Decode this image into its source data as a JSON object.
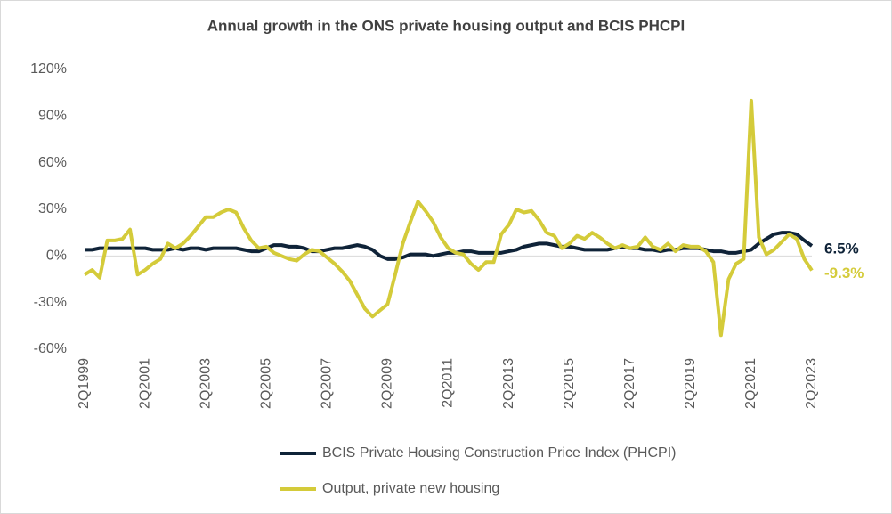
{
  "chart_data": {
    "type": "line",
    "title": "Annual growth in the ONS private housing output and BCIS PHCPI",
    "categories": [
      "2Q1999",
      null,
      null,
      null,
      null,
      null,
      null,
      null,
      "2Q2001",
      null,
      null,
      null,
      null,
      null,
      null,
      null,
      "2Q2003",
      null,
      null,
      null,
      null,
      null,
      null,
      null,
      "2Q2005",
      null,
      null,
      null,
      null,
      null,
      null,
      null,
      "2Q2007",
      null,
      null,
      null,
      null,
      null,
      null,
      null,
      "2Q2009",
      null,
      null,
      null,
      null,
      null,
      null,
      null,
      "2Q2011",
      null,
      null,
      null,
      null,
      null,
      null,
      null,
      "2Q2013",
      null,
      null,
      null,
      null,
      null,
      null,
      null,
      "2Q2015",
      null,
      null,
      null,
      null,
      null,
      null,
      null,
      "2Q2017",
      null,
      null,
      null,
      null,
      null,
      null,
      null,
      "2Q2019",
      null,
      null,
      null,
      null,
      null,
      null,
      null,
      "2Q2021",
      null,
      null,
      null,
      null,
      null,
      null,
      null,
      "2Q2023"
    ],
    "series": [
      {
        "name": "BCIS Private Housing Construction Price Index (PHCPI)",
        "color": "#0f2338",
        "values": [
          4,
          4,
          5,
          5,
          5,
          5,
          5,
          5,
          5,
          4,
          4,
          4,
          5,
          4,
          5,
          5,
          4,
          5,
          5,
          5,
          5,
          4,
          3,
          3,
          5,
          7,
          7,
          6,
          6,
          5,
          3,
          3,
          4,
          5,
          5,
          6,
          7,
          6,
          4,
          0,
          -2,
          -2,
          -1,
          1,
          1,
          1,
          0,
          1,
          2,
          2,
          3,
          3,
          2,
          2,
          2,
          2,
          3,
          4,
          6,
          7,
          8,
          8,
          7,
          6,
          6,
          5,
          4,
          4,
          4,
          4,
          5,
          6,
          5,
          5,
          4,
          4,
          3,
          4,
          4,
          5,
          5,
          5,
          4,
          3,
          3,
          2,
          2,
          3,
          4,
          8,
          11,
          14,
          15,
          15,
          14,
          10,
          6.5
        ],
        "value_labels": [
          null,
          null,
          null,
          null,
          null,
          null,
          null,
          null,
          null,
          null,
          null,
          null,
          null,
          null,
          null,
          null,
          null,
          null,
          null,
          null,
          null,
          null,
          null,
          null,
          null,
          null,
          null,
          null,
          null,
          null,
          null,
          null,
          null,
          null,
          null,
          null,
          null,
          null,
          null,
          null,
          null,
          null,
          null,
          null,
          null,
          null,
          null,
          null,
          null,
          null,
          null,
          null,
          null,
          null,
          null,
          null,
          null,
          null,
          null,
          null,
          null,
          null,
          null,
          null,
          null,
          null,
          null,
          null,
          null,
          null,
          null,
          null,
          null,
          null,
          null,
          null,
          null,
          null,
          null,
          null,
          null,
          null,
          null,
          null,
          null,
          null,
          null,
          null,
          null,
          null,
          null,
          null,
          null,
          null,
          null,
          null,
          "6.5%"
        ]
      },
      {
        "name": "Output, private new housing",
        "color": "#d4cb3a",
        "values": [
          -12,
          -9,
          -14,
          10,
          10,
          11,
          17,
          -12,
          -9,
          -5,
          -2,
          8,
          5,
          8,
          13,
          19,
          25,
          25,
          28,
          30,
          28,
          18,
          10,
          5,
          6,
          2,
          0,
          -2,
          -3,
          1,
          4,
          3,
          -1,
          -5,
          -10,
          -16,
          -25,
          -34,
          -39,
          -35,
          -31,
          -12,
          8,
          22,
          35,
          29,
          22,
          12,
          5,
          2,
          1,
          -5,
          -9,
          -4,
          -4,
          14,
          20,
          30,
          28,
          29,
          23,
          15,
          13,
          5,
          8,
          13,
          11,
          15,
          12,
          8,
          5,
          7,
          5,
          6,
          12,
          6,
          4,
          8,
          3,
          7,
          6,
          6,
          3,
          -4,
          -51,
          -15,
          -5,
          -2,
          100,
          12,
          1,
          4,
          9,
          14,
          11,
          -2,
          -9.3
        ],
        "value_labels": [
          null,
          null,
          null,
          null,
          null,
          null,
          null,
          null,
          null,
          null,
          null,
          null,
          null,
          null,
          null,
          null,
          null,
          null,
          null,
          null,
          null,
          null,
          null,
          null,
          null,
          null,
          null,
          null,
          null,
          null,
          null,
          null,
          null,
          null,
          null,
          null,
          null,
          null,
          null,
          null,
          null,
          null,
          null,
          null,
          null,
          null,
          null,
          null,
          null,
          null,
          null,
          null,
          null,
          null,
          null,
          null,
          null,
          null,
          null,
          null,
          null,
          null,
          null,
          null,
          null,
          null,
          null,
          null,
          null,
          null,
          null,
          null,
          null,
          null,
          null,
          null,
          null,
          null,
          null,
          null,
          null,
          null,
          null,
          null,
          null,
          null,
          null,
          null,
          null,
          null,
          null,
          null,
          null,
          null,
          null,
          null,
          "-9.3%"
        ]
      }
    ],
    "ylim": [
      -60,
      120
    ],
    "yticks": [
      {
        "value": -60,
        "label": "-60%"
      },
      {
        "value": -30,
        "label": "-30%"
      },
      {
        "value": 0,
        "label": "0%"
      },
      {
        "value": 30,
        "label": "30%"
      },
      {
        "value": 60,
        "label": "60%"
      },
      {
        "value": 90,
        "label": "90%"
      },
      {
        "value": 120,
        "label": "120%"
      }
    ],
    "grid": false
  }
}
